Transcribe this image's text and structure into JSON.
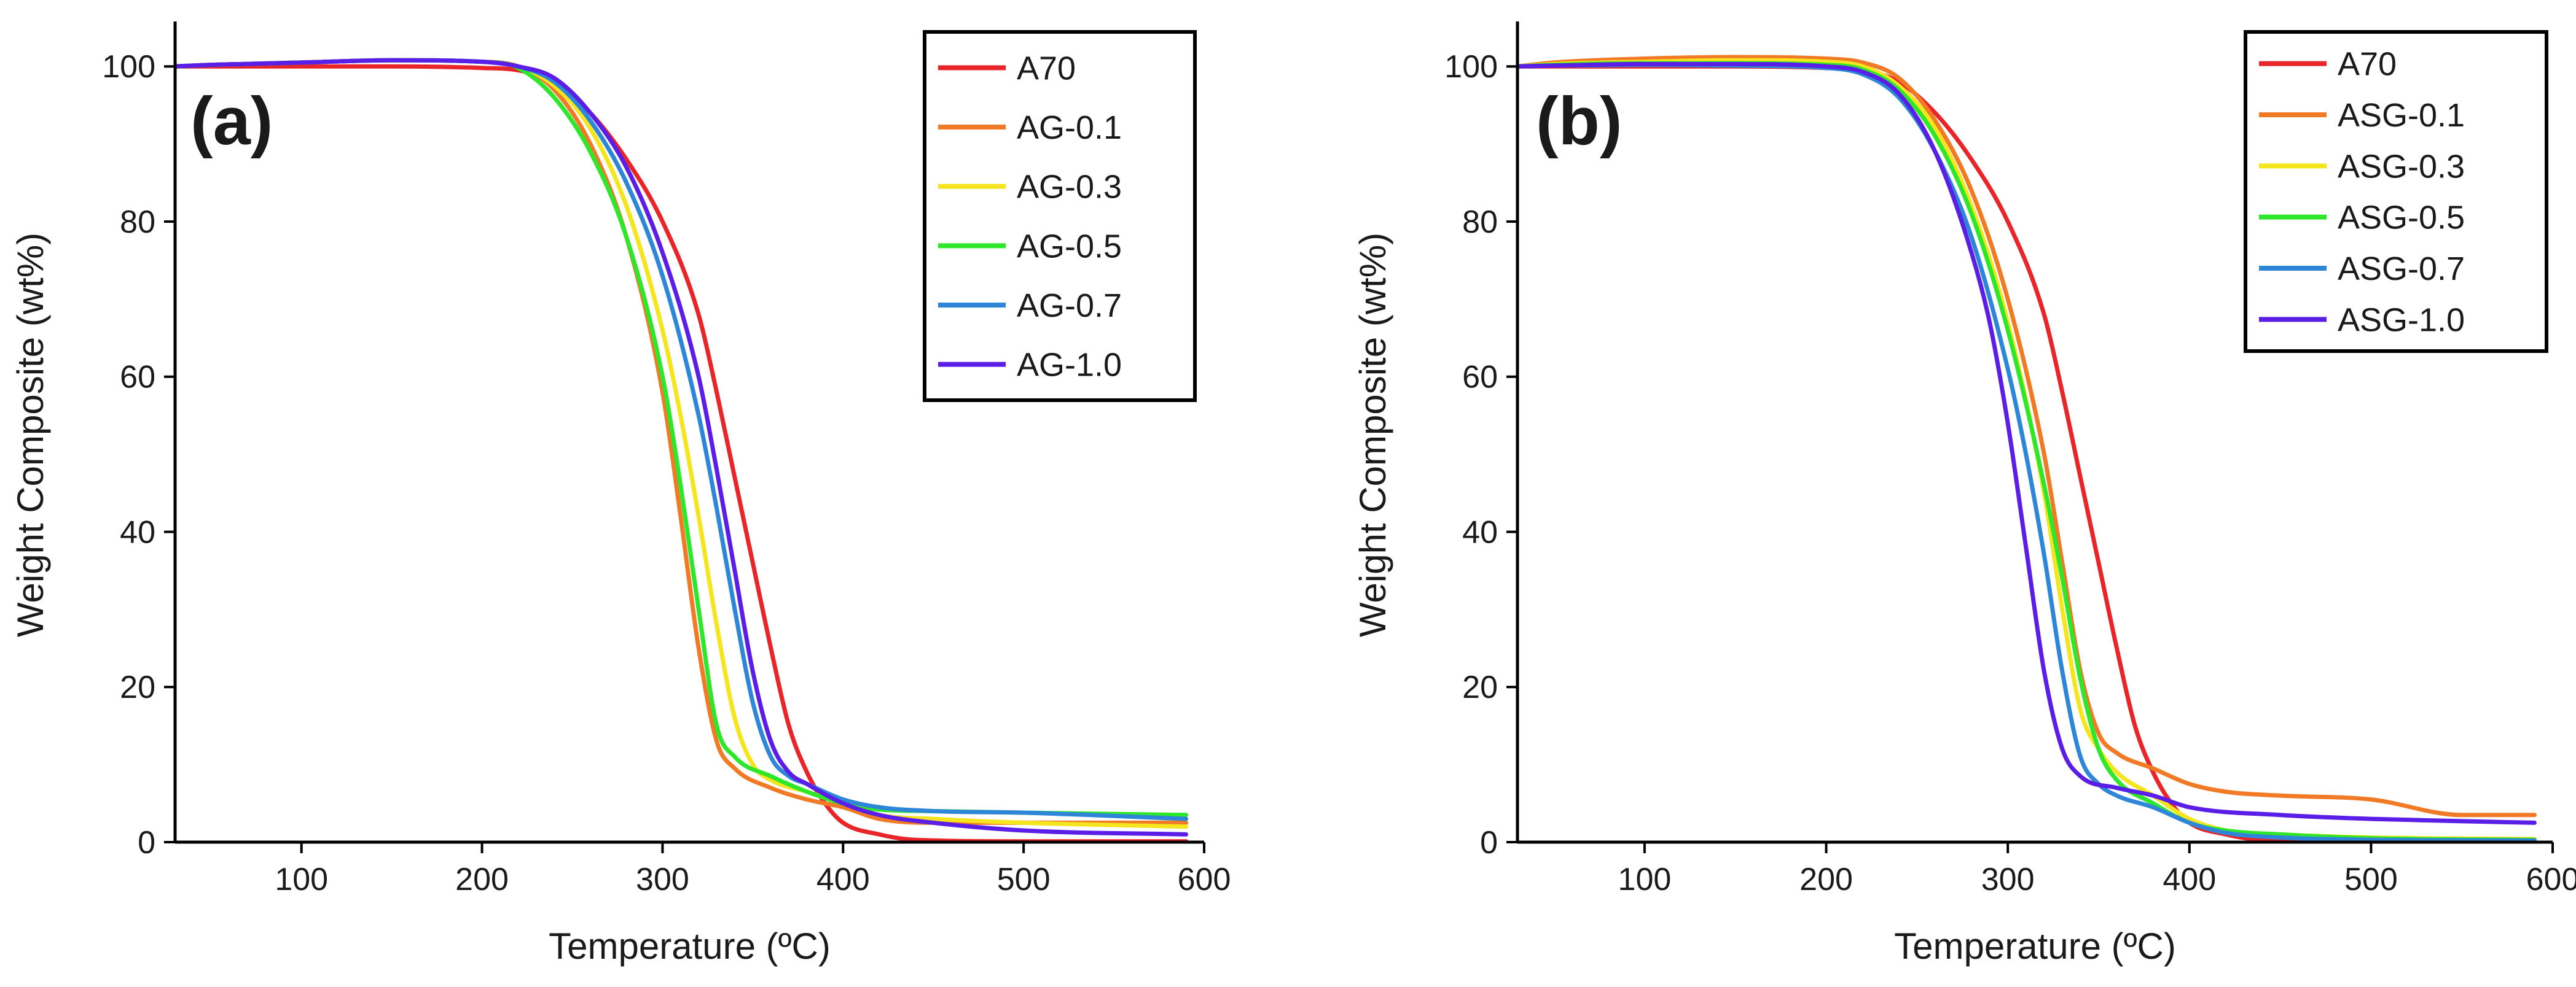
{
  "chart_data": [
    {
      "type": "line",
      "panel_label": "(a)",
      "xlabel": "Temperature (ºC)",
      "ylabel": "Weight Composite (wt%)",
      "xlim": [
        30,
        600
      ],
      "ylim": [
        0,
        105
      ],
      "xticks": [
        100,
        200,
        300,
        400,
        500,
        600
      ],
      "yticks": [
        0,
        20,
        40,
        60,
        80,
        100
      ],
      "legend_position": "top-right",
      "series": [
        {
          "name": "A70",
          "color": "#e8262a",
          "x": [
            30,
            50,
            100,
            150,
            200,
            220,
            240,
            260,
            280,
            300,
            320,
            330,
            340,
            350,
            360,
            370,
            380,
            390,
            400,
            420,
            440,
            500,
            590
          ],
          "y": [
            100,
            100,
            100,
            100,
            99.8,
            99.5,
            98,
            94,
            88,
            80,
            68,
            58,
            47,
            36,
            25,
            15,
            9,
            5,
            2.5,
            1,
            0.3,
            0.1,
            0.1
          ]
        },
        {
          "name": "AG-0.1",
          "color": "#f07a26",
          "x": [
            30,
            50,
            100,
            150,
            200,
            220,
            240,
            260,
            280,
            300,
            310,
            320,
            330,
            340,
            360,
            380,
            400,
            420,
            450,
            500,
            590
          ],
          "y": [
            100,
            100.2,
            100.5,
            100.8,
            100.6,
            100,
            97,
            90,
            78,
            58,
            42,
            25,
            13,
            9.5,
            7,
            5.5,
            4.5,
            3,
            2.5,
            2.5,
            2.5
          ]
        },
        {
          "name": "AG-0.3",
          "color": "#f4e51e",
          "x": [
            30,
            50,
            100,
            150,
            200,
            220,
            240,
            260,
            280,
            300,
            310,
            320,
            330,
            340,
            350,
            360,
            380,
            400,
            420,
            450,
            500,
            590
          ],
          "y": [
            100,
            100.2,
            100.5,
            100.8,
            100.6,
            100,
            97.5,
            92,
            82,
            66,
            55,
            42,
            28,
            16,
            10,
            8,
            6.5,
            5,
            3.5,
            3,
            2.5,
            2
          ]
        },
        {
          "name": "AG-0.5",
          "color": "#2ee62a",
          "x": [
            30,
            50,
            100,
            150,
            200,
            220,
            240,
            260,
            280,
            300,
            310,
            320,
            330,
            340,
            360,
            380,
            400,
            420,
            450,
            500,
            590
          ],
          "y": [
            100,
            100.2,
            100.5,
            100.8,
            100.6,
            99.8,
            96,
            89,
            78,
            60,
            46,
            30,
            15,
            11,
            8.5,
            6.5,
            5,
            4.2,
            4,
            3.8,
            3.5
          ]
        },
        {
          "name": "AG-0.7",
          "color": "#2e86d8",
          "x": [
            30,
            50,
            100,
            150,
            200,
            220,
            240,
            260,
            280,
            300,
            320,
            330,
            340,
            350,
            360,
            370,
            380,
            400,
            420,
            450,
            500,
            590
          ],
          "y": [
            100,
            100.2,
            100.5,
            100.8,
            100.6,
            100,
            98,
            93,
            85,
            73,
            55,
            43,
            30,
            18,
            11,
            8.5,
            7.5,
            5.5,
            4.5,
            4,
            3.8,
            3
          ]
        },
        {
          "name": "AG-1.0",
          "color": "#5a1ee6",
          "x": [
            30,
            50,
            100,
            150,
            200,
            220,
            240,
            260,
            280,
            300,
            320,
            330,
            340,
            350,
            360,
            370,
            380,
            400,
            420,
            450,
            500,
            590
          ],
          "y": [
            100,
            100.2,
            100.5,
            100.8,
            100.6,
            100,
            98.5,
            94,
            87,
            76,
            60,
            48,
            35,
            22,
            13,
            9,
            7.5,
            5,
            3.5,
            2.5,
            1.5,
            1
          ]
        }
      ]
    },
    {
      "type": "line",
      "panel_label": "(b)",
      "xlabel": "Temperature (ºC)",
      "ylabel": "Weight Composite (wt%)",
      "xlim": [
        30,
        600
      ],
      "ylim": [
        0,
        105
      ],
      "xticks": [
        100,
        200,
        300,
        400,
        500,
        600
      ],
      "yticks": [
        0,
        20,
        40,
        60,
        80,
        100
      ],
      "legend_position": "top-right",
      "series": [
        {
          "name": "A70",
          "color": "#e8262a",
          "x": [
            30,
            50,
            100,
            150,
            200,
            220,
            240,
            260,
            280,
            300,
            320,
            330,
            340,
            350,
            360,
            370,
            380,
            390,
            400,
            420,
            440,
            500,
            590
          ],
          "y": [
            100,
            100,
            100,
            100,
            99.8,
            99.5,
            98,
            94,
            88,
            80,
            68,
            58,
            47,
            36,
            25,
            15,
            9,
            5,
            2.5,
            1,
            0.3,
            0.1,
            0.1
          ]
        },
        {
          "name": "ASG-0.1",
          "color": "#f07a26",
          "x": [
            30,
            50,
            100,
            150,
            200,
            220,
            240,
            260,
            280,
            300,
            320,
            330,
            340,
            350,
            360,
            380,
            400,
            420,
            450,
            500,
            550,
            590
          ],
          "y": [
            100,
            100.5,
            101,
            101.2,
            101,
            100.5,
            98.5,
            93,
            84,
            70,
            50,
            36,
            22,
            14,
            11.5,
            9.5,
            7.5,
            6.5,
            6,
            5.5,
            3.5,
            3.5
          ]
        },
        {
          "name": "ASG-0.3",
          "color": "#f4e51e",
          "x": [
            30,
            50,
            100,
            150,
            200,
            220,
            240,
            260,
            280,
            300,
            320,
            330,
            340,
            350,
            360,
            380,
            400,
            420,
            450,
            500,
            590
          ],
          "y": [
            100,
            100.3,
            100.6,
            100.8,
            100.6,
            100,
            97.5,
            92,
            82,
            67,
            45,
            30,
            17,
            12,
            9,
            6,
            3,
            1.5,
            1,
            0.6,
            0.4
          ]
        },
        {
          "name": "ASG-0.5",
          "color": "#2ee62a",
          "x": [
            30,
            50,
            100,
            150,
            200,
            220,
            240,
            260,
            280,
            300,
            320,
            330,
            340,
            350,
            360,
            380,
            400,
            420,
            450,
            500,
            590
          ],
          "y": [
            100,
            100.2,
            100.4,
            100.4,
            100.2,
            99.6,
            97,
            91,
            81,
            66,
            46,
            34,
            21,
            12,
            8,
            5,
            2.5,
            1.5,
            1,
            0.5,
            0.3
          ]
        },
        {
          "name": "ASG-0.7",
          "color": "#2e86d8",
          "x": [
            30,
            50,
            100,
            150,
            200,
            220,
            240,
            260,
            280,
            300,
            310,
            320,
            330,
            340,
            350,
            360,
            380,
            400,
            420,
            450,
            500,
            590
          ],
          "y": [
            100,
            100.1,
            100.2,
            100.1,
            99.8,
            99,
            96,
            89,
            78,
            61,
            50,
            37,
            22,
            11,
            7.5,
            6,
            4.5,
            2.5,
            1.2,
            0.6,
            0.3,
            0.2
          ]
        },
        {
          "name": "ASG-1.0",
          "color": "#5a1ee6",
          "x": [
            30,
            50,
            100,
            150,
            200,
            220,
            240,
            260,
            280,
            290,
            300,
            310,
            320,
            330,
            340,
            360,
            380,
            400,
            450,
            500,
            590
          ],
          "y": [
            100,
            100.1,
            100.3,
            100.3,
            100,
            99.3,
            96.5,
            89,
            76,
            67,
            54,
            38,
            22,
            12,
            8.5,
            7,
            6,
            4.5,
            3.5,
            3,
            2.5
          ]
        }
      ]
    }
  ]
}
